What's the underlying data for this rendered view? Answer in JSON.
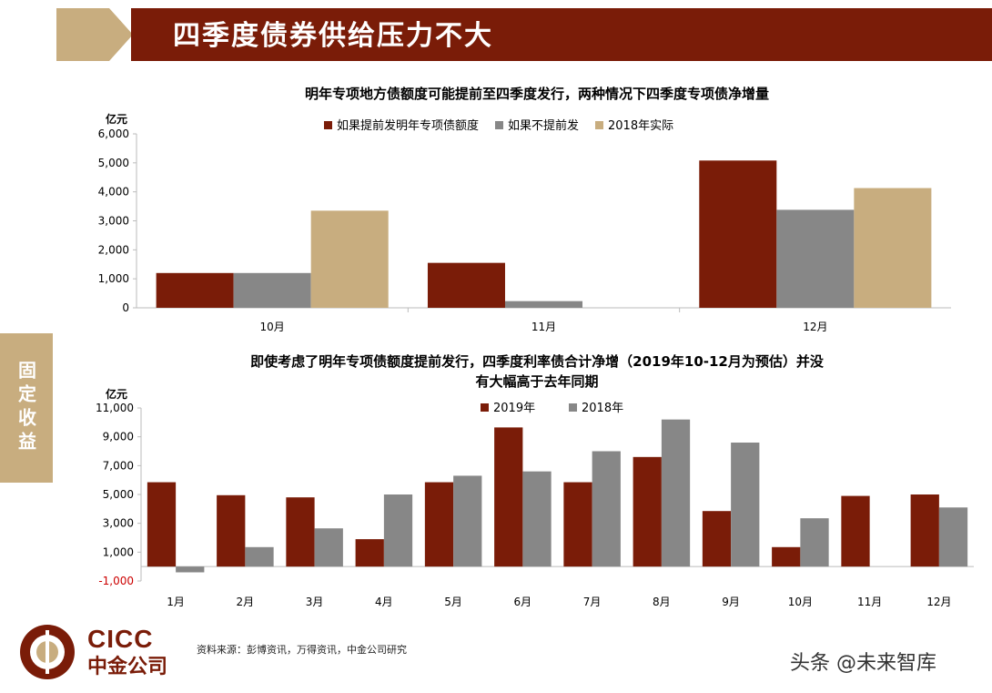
{
  "header": {
    "title": "四季度债券供给压力不大"
  },
  "side_tab": {
    "label": "固定收益"
  },
  "footer": {
    "logo_en": "CICC",
    "logo_cn": "中金公司",
    "source": "资料来源：彭博资讯，万得资讯，中金公司研究",
    "watermark": "头条 @未来智库"
  },
  "colors": {
    "dark_red": "#7a1c08",
    "gray": "#878787",
    "tan": "#c8ad7f"
  },
  "chart_data": [
    {
      "type": "bar",
      "title": "明年专项地方债额度可能提前至四季度发行，两种情况下四季度专项债净增量",
      "unit": "亿元",
      "ylim": [
        0,
        6000
      ],
      "yticks": [
        "0",
        "1,000",
        "2,000",
        "3,000",
        "4,000",
        "5,000",
        "6,000"
      ],
      "categories": [
        "10月",
        "11月",
        "12月"
      ],
      "legend_position": "top",
      "series": [
        {
          "name": "如果提前发明年专项债额度",
          "color": "#7a1c08",
          "values": [
            1200,
            1550,
            5080
          ]
        },
        {
          "name": "如果不提前发",
          "color": "#878787",
          "values": [
            1200,
            230,
            3380
          ]
        },
        {
          "name": "2018年实际",
          "color": "#c8ad7f",
          "values": [
            3350,
            null,
            4130
          ]
        }
      ]
    },
    {
      "type": "bar",
      "title": "即使考虑了明年专项债额度提前发行，四季度利率债合计净增（2019年10-12月为预估）并没",
      "title_line2": "有大幅高于去年同期",
      "unit": "亿元",
      "ylim": [
        -1000,
        11000
      ],
      "yticks": [
        "-1,000",
        "1,000",
        "3,000",
        "5,000",
        "7,000",
        "9,000",
        "11,000"
      ],
      "categories": [
        "1月",
        "2月",
        "3月",
        "4月",
        "5月",
        "6月",
        "7月",
        "8月",
        "9月",
        "10月",
        "11月",
        "12月"
      ],
      "legend_position": "top",
      "series": [
        {
          "name": "2019年",
          "color": "#7a1c08",
          "values": [
            5850,
            4950,
            4800,
            1900,
            5850,
            9650,
            5850,
            7600,
            3850,
            1350,
            4900,
            5000
          ]
        },
        {
          "name": "2018年",
          "color": "#878787",
          "values": [
            -400,
            1350,
            2650,
            5000,
            6300,
            6600,
            8000,
            10200,
            8600,
            3350,
            null,
            4100
          ]
        }
      ]
    }
  ]
}
